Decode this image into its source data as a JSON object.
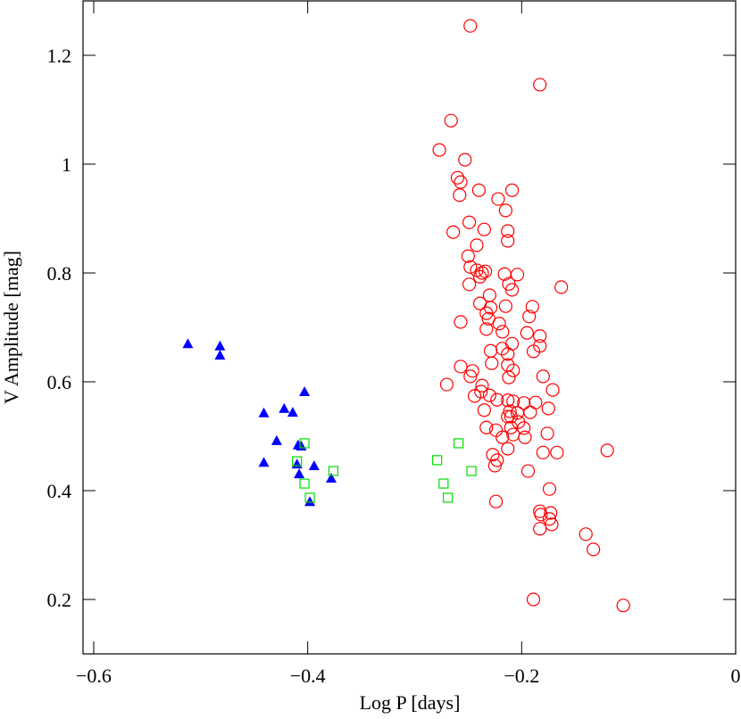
{
  "chart_data": {
    "type": "scatter",
    "xlabel": "Log P [days]",
    "ylabel": "V Amplitude [mag]",
    "xlim": [
      -0.61,
      0
    ],
    "ylim": [
      0.1,
      1.3
    ],
    "xticks": [
      {
        "value": -0.6,
        "label": "−0.6"
      },
      {
        "value": -0.4,
        "label": "−0.4"
      },
      {
        "value": -0.2,
        "label": "−0.2"
      },
      0
    ],
    "yticks": [
      0.2,
      0.4,
      0.6,
      0.8,
      1,
      1.2
    ],
    "series": [
      {
        "color": "#0000ff",
        "marker": "triangle",
        "x": [
          -0.512,
          -0.482,
          -0.482,
          -0.441,
          -0.422,
          -0.414,
          -0.403,
          -0.429,
          -0.441,
          -0.409,
          -0.406,
          -0.41,
          -0.408,
          -0.394,
          -0.378,
          -0.398
        ],
        "values": [
          0.67,
          0.666,
          0.649,
          0.543,
          0.551,
          0.544,
          0.582,
          0.492,
          0.452,
          0.484,
          0.482,
          0.449,
          0.431,
          0.446,
          0.423,
          0.38
        ]
      },
      {
        "color": "#00dd00",
        "marker": "square",
        "x": [
          -0.403,
          -0.41,
          -0.403,
          -0.398,
          -0.376,
          -0.279,
          -0.259,
          -0.273,
          -0.269,
          -0.247
        ],
        "values": [
          0.487,
          0.454,
          0.413,
          0.387,
          0.436,
          0.456,
          0.487,
          0.413,
          0.387,
          0.436
        ]
      },
      {
        "color": "#ff0000",
        "marker": "circle",
        "x": [
          -0.248,
          -0.183,
          -0.266,
          -0.277,
          -0.253,
          -0.26,
          -0.257,
          -0.258,
          -0.24,
          -0.209,
          -0.222,
          -0.215,
          -0.249,
          -0.264,
          -0.235,
          -0.213,
          -0.213,
          -0.242,
          -0.25,
          -0.248,
          -0.242,
          -0.237,
          -0.239,
          -0.234,
          -0.216,
          -0.204,
          -0.249,
          -0.212,
          -0.209,
          -0.163,
          -0.23,
          -0.19,
          -0.239,
          -0.229,
          -0.215,
          -0.233,
          -0.231,
          -0.193,
          -0.221,
          -0.257,
          -0.233,
          -0.218,
          -0.195,
          -0.209,
          -0.183,
          -0.183,
          -0.218,
          -0.229,
          -0.189,
          -0.213,
          -0.228,
          -0.213,
          -0.257,
          -0.246,
          -0.208,
          -0.18,
          -0.212,
          -0.27,
          -0.237,
          -0.238,
          -0.23,
          -0.213,
          -0.208,
          -0.171,
          -0.187,
          -0.244,
          -0.198,
          -0.223,
          -0.211,
          -0.175,
          -0.235,
          -0.204,
          -0.21,
          -0.213,
          -0.192,
          -0.203,
          -0.198,
          -0.21,
          -0.224,
          -0.176,
          -0.218,
          -0.208,
          -0.197,
          -0.213,
          -0.18,
          -0.227,
          -0.223,
          -0.225,
          -0.167,
          -0.12,
          -0.194,
          -0.174,
          -0.224,
          -0.183,
          -0.182,
          -0.173,
          -0.174,
          -0.183,
          -0.172,
          -0.14,
          -0.133,
          -0.189,
          -0.105,
          -0.248,
          -0.233
        ],
        "values": [
          1.254,
          1.146,
          1.08,
          1.026,
          1.008,
          0.975,
          0.967,
          0.943,
          0.952,
          0.952,
          0.936,
          0.915,
          0.893,
          0.875,
          0.88,
          0.877,
          0.859,
          0.851,
          0.831,
          0.811,
          0.805,
          0.8,
          0.793,
          0.803,
          0.798,
          0.797,
          0.779,
          0.78,
          0.769,
          0.774,
          0.759,
          0.738,
          0.744,
          0.736,
          0.739,
          0.726,
          0.716,
          0.72,
          0.707,
          0.71,
          0.697,
          0.692,
          0.69,
          0.67,
          0.684,
          0.666,
          0.661,
          0.657,
          0.656,
          0.651,
          0.634,
          0.631,
          0.628,
          0.62,
          0.621,
          0.61,
          0.608,
          0.595,
          0.593,
          0.582,
          0.575,
          0.566,
          0.564,
          0.585,
          0.562,
          0.574,
          0.561,
          0.567,
          0.546,
          0.551,
          0.548,
          0.543,
          0.536,
          0.536,
          0.544,
          0.526,
          0.515,
          0.516,
          0.511,
          0.505,
          0.498,
          0.503,
          0.498,
          0.477,
          0.47,
          0.466,
          0.456,
          0.446,
          0.47,
          0.474,
          0.436,
          0.403,
          0.38,
          0.362,
          0.356,
          0.359,
          0.348,
          0.33,
          0.338,
          0.32,
          0.292,
          0.2,
          0.189,
          0.61,
          0.516
        ]
      }
    ]
  }
}
